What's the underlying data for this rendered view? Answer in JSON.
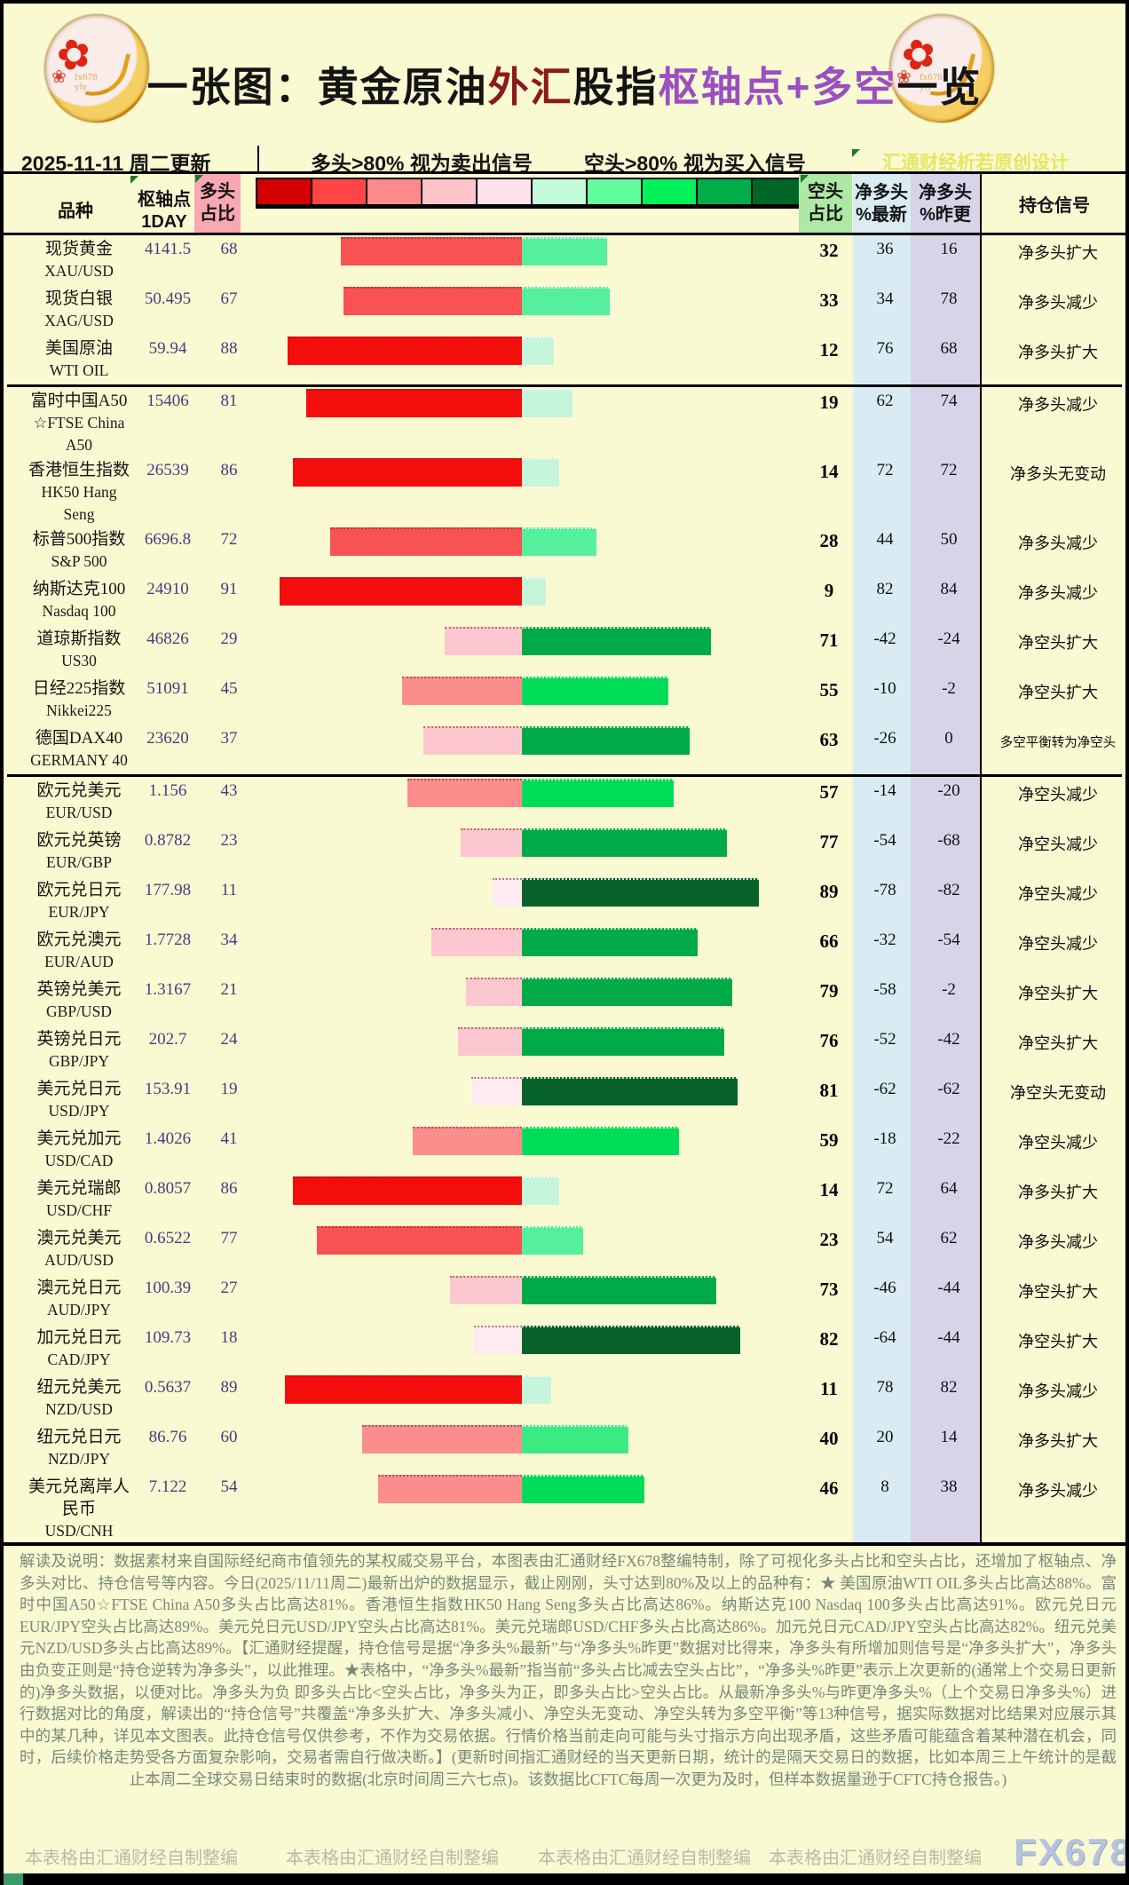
{
  "title": {
    "prefix": "一张图：黄金原油",
    "fx": "外汇",
    "stock": "股指",
    "pivot": "枢轴点+多空",
    "suffix": "一览"
  },
  "date_row": {
    "date": "2025-11-11 周二更新",
    "long_rule": "多头>80% 视为卖出信号",
    "short_rule": "空头>80% 视为买入信号",
    "watermark": "汇通财经析若原创设计"
  },
  "header": {
    "instrument": "品种",
    "pivot_l1": "枢轴点",
    "pivot_l2": "1DAY",
    "long_l1": "多头",
    "long_l2": "占比",
    "short_l1": "空头",
    "short_l2": "占比",
    "net_latest_l1": "净多头",
    "net_latest_l2": "%最新",
    "net_prev_l1": "净多头",
    "net_prev_l2": "%昨更",
    "signal": "持仓信号"
  },
  "scale_colors": [
    "#d40000",
    "#ff4545",
    "#ff8a8a",
    "#ffc3ca",
    "#ffe2ea",
    "#c2fada",
    "#63fc9d",
    "#00f258",
    "#00ae49",
    "#006628"
  ],
  "bar_color_bands": {
    "long": [
      [
        80,
        "#f40d0d"
      ],
      [
        65,
        "#f95252"
      ],
      [
        40,
        "#fc8d8d"
      ],
      [
        20,
        "#fdc7cf"
      ],
      [
        0,
        "#feebf2"
      ]
    ],
    "short": [
      [
        80,
        "#07612a"
      ],
      [
        60,
        "#00aa46"
      ],
      [
        45,
        "#00dc58"
      ],
      [
        35,
        "#3cea84"
      ],
      [
        20,
        "#55f09d"
      ],
      [
        0,
        "#c5f5da"
      ]
    ]
  },
  "colors": {
    "page_bg": "#fafad2",
    "title_fx": "#8b1a1a",
    "title_pivot": "#9b4fc0",
    "watermark": "#e5e565",
    "num_purple": "#453c80",
    "header_long_bg": "#f7a8b2",
    "header_short_bg": "#aee8a4",
    "col_net_latest_bg": "#d9ecf4",
    "col_net_prev_bg": "#d9d3e9",
    "explain_text": "#78887c"
  },
  "rows": [
    {
      "name": [
        "现货黄金",
        "XAU/USD"
      ],
      "pivot": "4141.5",
      "long_pct": 68,
      "short_pct": 32,
      "net_latest": "36",
      "net_prev": "16",
      "signal": "净多头扩大"
    },
    {
      "name": [
        "现货白银",
        "XAG/USD"
      ],
      "pivot": "50.495",
      "long_pct": 67,
      "short_pct": 33,
      "net_latest": "34",
      "net_prev": "78",
      "signal": "净多头减少"
    },
    {
      "name": [
        "美国原油",
        "WTI OIL"
      ],
      "pivot": "59.94",
      "long_pct": 88,
      "short_pct": 12,
      "net_latest": "76",
      "net_prev": "68",
      "signal": "净多头扩大",
      "section_end": true
    },
    {
      "name": [
        "富时中国A50",
        "☆FTSE China",
        "A50"
      ],
      "pivot": "15406",
      "long_pct": 81,
      "short_pct": 19,
      "net_latest": "62",
      "net_prev": "74",
      "signal": "净多头减少"
    },
    {
      "name": [
        "香港恒生指数",
        "HK50 Hang",
        "Seng"
      ],
      "pivot": "26539",
      "long_pct": 86,
      "short_pct": 14,
      "net_latest": "72",
      "net_prev": "72",
      "signal": "净多头无变动"
    },
    {
      "name": [
        "标普500指数",
        "S&P 500"
      ],
      "pivot": "6696.8",
      "long_pct": 72,
      "short_pct": 28,
      "net_latest": "44",
      "net_prev": "50",
      "signal": "净多头减少"
    },
    {
      "name": [
        "纳斯达克100",
        "Nasdaq 100"
      ],
      "pivot": "24910",
      "long_pct": 91,
      "short_pct": 9,
      "net_latest": "82",
      "net_prev": "84",
      "signal": "净多头减少"
    },
    {
      "name": [
        "道琼斯指数",
        "US30"
      ],
      "pivot": "46826",
      "long_pct": 29,
      "short_pct": 71,
      "net_latest": "-42",
      "net_prev": "-24",
      "signal": "净空头扩大"
    },
    {
      "name": [
        "日经225指数",
        "Nikkei225"
      ],
      "pivot": "51091",
      "long_pct": 45,
      "short_pct": 55,
      "net_latest": "-10",
      "net_prev": "-2",
      "signal": "净空头扩大"
    },
    {
      "name": [
        "德国DAX40",
        "GERMANY 40"
      ],
      "pivot": "23620",
      "long_pct": 37,
      "short_pct": 63,
      "net_latest": "-26",
      "net_prev": "0",
      "signal": "多空平衡转为净空头",
      "section_end": true
    },
    {
      "name": [
        "欧元兑美元",
        "EUR/USD"
      ],
      "pivot": "1.156",
      "long_pct": 43,
      "short_pct": 57,
      "net_latest": "-14",
      "net_prev": "-20",
      "signal": "净空头减少"
    },
    {
      "name": [
        "欧元兑英镑",
        "EUR/GBP"
      ],
      "pivot": "0.8782",
      "long_pct": 23,
      "short_pct": 77,
      "net_latest": "-54",
      "net_prev": "-68",
      "signal": "净空头减少"
    },
    {
      "name": [
        "欧元兑日元",
        "EUR/JPY"
      ],
      "pivot": "177.98",
      "long_pct": 11,
      "short_pct": 89,
      "net_latest": "-78",
      "net_prev": "-82",
      "signal": "净空头减少"
    },
    {
      "name": [
        "欧元兑澳元",
        "EUR/AUD"
      ],
      "pivot": "1.7728",
      "long_pct": 34,
      "short_pct": 66,
      "net_latest": "-32",
      "net_prev": "-54",
      "signal": "净空头减少"
    },
    {
      "name": [
        "英镑兑美元",
        "GBP/USD"
      ],
      "pivot": "1.3167",
      "long_pct": 21,
      "short_pct": 79,
      "net_latest": "-58",
      "net_prev": "-2",
      "signal": "净空头扩大"
    },
    {
      "name": [
        "英镑兑日元",
        "GBP/JPY"
      ],
      "pivot": "202.7",
      "long_pct": 24,
      "short_pct": 76,
      "net_latest": "-52",
      "net_prev": "-42",
      "signal": "净空头扩大"
    },
    {
      "name": [
        "美元兑日元",
        "USD/JPY"
      ],
      "pivot": "153.91",
      "long_pct": 19,
      "short_pct": 81,
      "net_latest": "-62",
      "net_prev": "-62",
      "signal": "净空头无变动"
    },
    {
      "name": [
        "美元兑加元",
        "USD/CAD"
      ],
      "pivot": "1.4026",
      "long_pct": 41,
      "short_pct": 59,
      "net_latest": "-18",
      "net_prev": "-22",
      "signal": "净空头减少"
    },
    {
      "name": [
        "美元兑瑞郎",
        "USD/CHF"
      ],
      "pivot": "0.8057",
      "long_pct": 86,
      "short_pct": 14,
      "net_latest": "72",
      "net_prev": "64",
      "signal": "净多头扩大"
    },
    {
      "name": [
        "澳元兑美元",
        "AUD/USD"
      ],
      "pivot": "0.6522",
      "long_pct": 77,
      "short_pct": 23,
      "net_latest": "54",
      "net_prev": "62",
      "signal": "净多头减少"
    },
    {
      "name": [
        "澳元兑日元",
        "AUD/JPY"
      ],
      "pivot": "100.39",
      "long_pct": 27,
      "short_pct": 73,
      "net_latest": "-46",
      "net_prev": "-44",
      "signal": "净空头扩大"
    },
    {
      "name": [
        "加元兑日元",
        "CAD/JPY"
      ],
      "pivot": "109.73",
      "long_pct": 18,
      "short_pct": 82,
      "net_latest": "-64",
      "net_prev": "-44",
      "signal": "净空头扩大"
    },
    {
      "name": [
        "纽元兑美元",
        "NZD/USD"
      ],
      "pivot": "0.5637",
      "long_pct": 89,
      "short_pct": 11,
      "net_latest": "78",
      "net_prev": "82",
      "signal": "净多头减少"
    },
    {
      "name": [
        "纽元兑日元",
        "NZD/JPY"
      ],
      "pivot": "86.76",
      "long_pct": 60,
      "short_pct": 40,
      "net_latest": "20",
      "net_prev": "14",
      "signal": "净多头扩大"
    },
    {
      "name": [
        "美元兑离岸人",
        "民币",
        "USD/CNH"
      ],
      "pivot": "7.122",
      "long_pct": 54,
      "short_pct": 46,
      "net_latest": "8",
      "net_prev": "38",
      "signal": "净多头减少"
    }
  ],
  "chart_data": {
    "type": "bar",
    "subtype": "diverging-stacked-horizontal",
    "title": "一张图：黄金原油外汇股指枢轴点+多空一览",
    "categories": [
      "XAU/USD",
      "XAG/USD",
      "WTI OIL",
      "FTSE China A50",
      "HK50 Hang Seng",
      "S&P 500",
      "Nasdaq 100",
      "US30",
      "Nikkei225",
      "GERMANY 40",
      "EUR/USD",
      "EUR/GBP",
      "EUR/JPY",
      "EUR/AUD",
      "GBP/USD",
      "GBP/JPY",
      "USD/JPY",
      "USD/CAD",
      "USD/CHF",
      "AUD/USD",
      "AUD/JPY",
      "CAD/JPY",
      "NZD/USD",
      "NZD/JPY",
      "USD/CNH"
    ],
    "series": [
      {
        "name": "多头占比",
        "values": [
          68,
          67,
          88,
          81,
          86,
          72,
          91,
          29,
          45,
          37,
          43,
          23,
          11,
          34,
          21,
          24,
          19,
          41,
          86,
          77,
          27,
          18,
          89,
          60,
          54
        ]
      },
      {
        "name": "空头占比",
        "values": [
          32,
          33,
          12,
          19,
          14,
          28,
          9,
          71,
          55,
          63,
          57,
          77,
          89,
          66,
          79,
          76,
          81,
          59,
          14,
          23,
          73,
          82,
          11,
          40,
          46
        ]
      },
      {
        "name": "枢轴点1DAY",
        "values": [
          4141.5,
          50.495,
          59.94,
          15406,
          26539,
          6696.8,
          24910,
          46826,
          51091,
          23620,
          1.156,
          0.8782,
          177.98,
          1.7728,
          1.3167,
          202.7,
          153.91,
          1.4026,
          0.8057,
          0.6522,
          100.39,
          109.73,
          0.5637,
          86.76,
          7.122
        ]
      },
      {
        "name": "净多头%最新",
        "values": [
          36,
          34,
          76,
          62,
          72,
          44,
          82,
          -42,
          -10,
          -26,
          -14,
          -54,
          -78,
          -32,
          -58,
          -52,
          -62,
          -18,
          72,
          54,
          -46,
          -64,
          78,
          20,
          8
        ]
      },
      {
        "name": "净多头%昨更",
        "values": [
          16,
          78,
          68,
          74,
          72,
          50,
          84,
          -24,
          -2,
          0,
          -20,
          -68,
          -82,
          -54,
          -2,
          -42,
          -62,
          -22,
          64,
          62,
          -44,
          -44,
          82,
          14,
          38
        ]
      }
    ],
    "xlim": [
      -100,
      100
    ],
    "legend_position": "top",
    "grid": false
  },
  "explain": {
    "text": "解读及说明：数据素材来自国际经纪商市值领先的某权威交易平台，本图表由汇通财经FX678整编特制，除了可视化多头占比和空头占比，还增加了枢轴点、净多头对比、持仓信号等内容。今日(2025/11/11周二)最新出炉的数据显示，截止刚刚，头寸达到80%及以上的品种有：★ 美国原油WTI OIL多头占比高达88%。富时中国A50☆FTSE China A50多头占比高达81%。香港恒生指数HK50 Hang Seng多头占比高达86%。纳斯达克100 Nasdaq 100多头占比高达91%。欧元兑日元EUR/JPY空头占比高达89%。美元兑日元USD/JPY空头占比高达81%。美元兑瑞郎USD/CHF多头占比高达86%。加元兑日元CAD/JPY空头占比高达82%。纽元兑美元NZD/USD多头占比高达89%。【汇通财经提醒，持仓信号是据“净多头%最新”与“净多头%昨更”数据对比得来，净多头有所增加则信号是“净多头扩大”，净多头由负变正则是“持仓逆转为净多头”，以此推理。★表格中，“净多头%最新”指当前“多头占比减去空头占比”，“净多头%昨更”表示上次更新的(通常上个交易日更新的)净多头数据，以便对比。净多头为负 即多头占比<空头占比，净多头为正，即多头占比>空头占比。从最新净多头%与昨更净多头%（上个交易日净多头%）进行数据对比的角度，解读出的“持仓信号”共覆盖“净多头扩大、净多头减小、净空头无变动、净空头转为多空平衡”等13种信号，据实际数据对比结果对应展示其中的某几种，详见本文图表。此持仓信号仅供参考，不作为交易依据。行情价格当前走向可能与头寸指示方向出现矛盾，这些矛盾可能蕴含着某种潜在机会，同时，后续价格走势受各方面复杂影响，交易者需自行做决断。】(更新时间指汇通财经的当天更新日期，统计的是隔天交易日的数据，比如本周三上午统计的是截止本周二全球交易日结束时的数据(北京时间周三六七点)。该数据比CFTC每周一次更为及时，但样本数据量逊于CFTC持仓报告。)"
  },
  "footer": {
    "credits": [
      "本表格由汇通财经自制整编",
      "本表格由汇通财经自制整编",
      "本表格由汇通财经自制整编",
      "本表格由汇通财经自制整编"
    ],
    "logo": "FX678"
  }
}
